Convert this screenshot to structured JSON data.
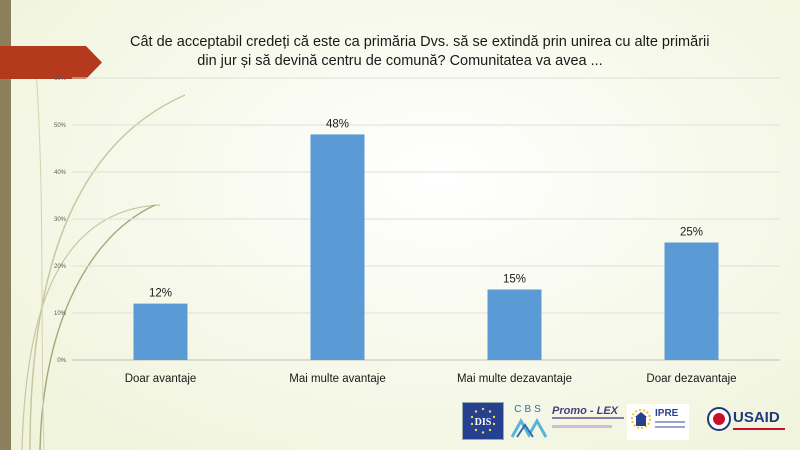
{
  "title": {
    "line1": "Cât de acceptabil credeți că este ca primăria Dvs. să se extindă prin unirea cu alte primării",
    "line2": "din jur și să devină centru de comună? Comunitatea va avea ..."
  },
  "chart_data": {
    "type": "bar",
    "categories": [
      "Doar avantaje",
      "Mai multe avantaje",
      "Mai multe dezavantaje",
      "Doar dezavantaje"
    ],
    "values": [
      12,
      48,
      15,
      25
    ],
    "data_labels": [
      "12%",
      "48%",
      "15%",
      "25%"
    ],
    "yticks": [
      0,
      10,
      20,
      30,
      40,
      50,
      60
    ],
    "ytick_labels": [
      "0%",
      "10%",
      "20%",
      "30%",
      "40%",
      "50%",
      "60%"
    ],
    "ylim": [
      0,
      60
    ],
    "grid": true,
    "bar_color": "#5b9bd5"
  },
  "logos": {
    "dis": "DIS",
    "cbs": "CBS",
    "promolex": "Promo - LEX",
    "ipre": "IPRE",
    "usaid": "USAID"
  },
  "colors": {
    "accent_arrow": "#b5391d",
    "left_bar": "#8c7f5c"
  }
}
